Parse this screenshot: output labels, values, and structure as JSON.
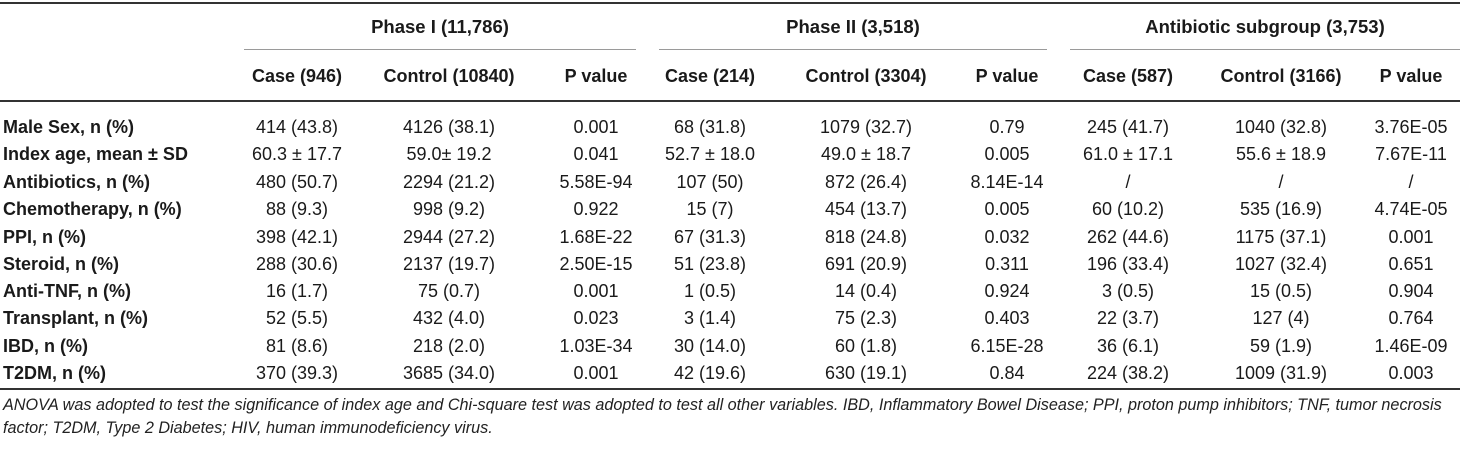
{
  "header": {
    "groups": [
      {
        "label": "Phase I (11,786)"
      },
      {
        "label": "Phase II (3,518)"
      },
      {
        "label": "Antibiotic subgroup (3,753)"
      }
    ],
    "subcolumns": [
      "Case (946)",
      "Control (10840)",
      "P value",
      "Case (214)",
      "Control (3304)",
      "P value",
      "Case (587)",
      "Control (3166)",
      "P value"
    ]
  },
  "rows": [
    {
      "label": "Male Sex, n (%)",
      "values": [
        "414 (43.8)",
        "4126 (38.1)",
        "0.001",
        "68 (31.8)",
        "1079 (32.7)",
        "0.79",
        "245 (41.7)",
        "1040 (32.8)",
        "3.76E-05"
      ]
    },
    {
      "label": "Index age, mean ± SD",
      "values": [
        "60.3 ± 17.7",
        "59.0± 19.2",
        "0.041",
        "52.7 ± 18.0",
        "49.0 ± 18.7",
        "0.005",
        "61.0 ± 17.1",
        "55.6 ± 18.9",
        "7.67E-11"
      ]
    },
    {
      "label": "Antibiotics, n (%)",
      "values": [
        "480 (50.7)",
        "2294 (21.2)",
        "5.58E-94",
        "107 (50)",
        "872 (26.4)",
        "8.14E-14",
        "/",
        "/",
        "/"
      ]
    },
    {
      "label": "Chemotherapy, n (%)",
      "values": [
        "88 (9.3)",
        "998 (9.2)",
        "0.922",
        "15 (7)",
        "454 (13.7)",
        "0.005",
        "60 (10.2)",
        "535 (16.9)",
        "4.74E-05"
      ]
    },
    {
      "label": "PPI, n (%)",
      "values": [
        "398 (42.1)",
        "2944 (27.2)",
        "1.68E-22",
        "67 (31.3)",
        "818 (24.8)",
        "0.032",
        "262 (44.6)",
        "1175 (37.1)",
        "0.001"
      ]
    },
    {
      "label": "Steroid, n (%)",
      "values": [
        "288 (30.6)",
        "2137 (19.7)",
        "2.50E-15",
        "51 (23.8)",
        "691 (20.9)",
        "0.311",
        "196 (33.4)",
        "1027 (32.4)",
        "0.651"
      ]
    },
    {
      "label": "Anti-TNF, n (%)",
      "values": [
        "16 (1.7)",
        "75 (0.7)",
        "0.001",
        "1 (0.5)",
        "14 (0.4)",
        "0.924",
        "3 (0.5)",
        "15 (0.5)",
        "0.904"
      ]
    },
    {
      "label": "Transplant, n (%)",
      "values": [
        "52 (5.5)",
        "432 (4.0)",
        "0.023",
        "3 (1.4)",
        "75 (2.3)",
        "0.403",
        "22 (3.7)",
        "127 (4)",
        "0.764"
      ]
    },
    {
      "label": "IBD, n (%)",
      "values": [
        "81 (8.6)",
        "218 (2.0)",
        "1.03E-34",
        "30 (14.0)",
        "60 (1.8)",
        "6.15E-28",
        "36 (6.1)",
        "59 (1.9)",
        "1.46E-09"
      ]
    },
    {
      "label": "T2DM, n (%)",
      "values": [
        "370 (39.3)",
        "3685 (34.0)",
        "0.001",
        "42 (19.6)",
        "630 (19.1)",
        "0.84",
        "224 (38.2)",
        "1009 (31.9)",
        "0.003"
      ]
    }
  ],
  "footnote": "ANOVA was adopted to test the significance of index age and Chi-square test was adopted to test all other variables. IBD, Inflammatory Bowel Disease; PPI, proton pump inhibitors; TNF, tumor necrosis factor; T2DM, Type 2 Diabetes; HIV, human immunodeficiency virus."
}
